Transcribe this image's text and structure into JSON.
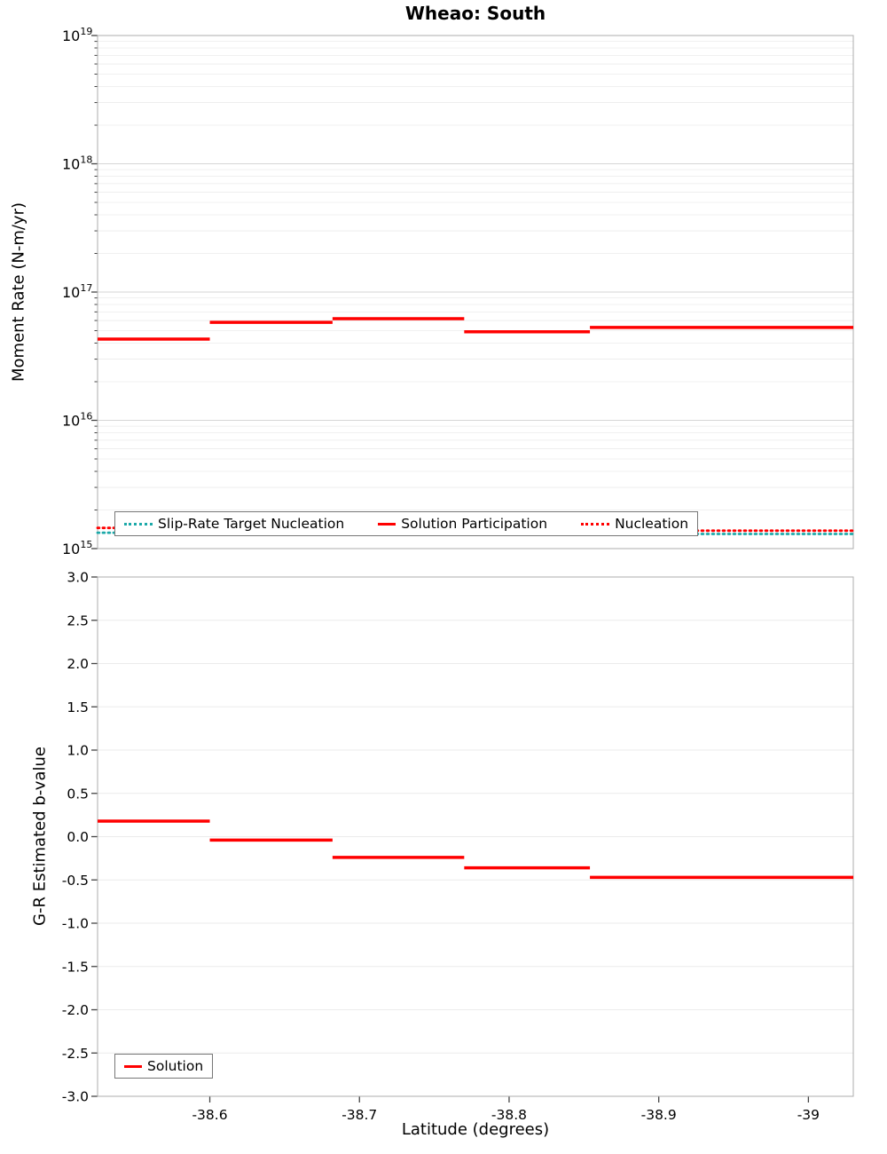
{
  "title": "Wheao: South",
  "colors": {
    "red": "#ff0000",
    "teal": "#1ca9a9",
    "grid_major": "#d6d6d6",
    "grid_minor": "#ebebeb",
    "axis": "#adadad",
    "tick": "#444444",
    "text": "#000000"
  },
  "chart_data": [
    {
      "id": "moment-rate",
      "type": "step-line",
      "title": "Wheao: South",
      "ylabel": "Moment Rate (N-m/yr)",
      "yscale": "log",
      "ylim": [
        1000000000000000.0,
        1e+19
      ],
      "xlim": [
        -38.525,
        -39.03
      ],
      "x_ticks": [
        -38.6,
        -38.7,
        -38.8,
        -38.9,
        -39
      ],
      "show_x_ticks": false,
      "y_ticks": [
        {
          "exp": 15
        },
        {
          "exp": 16
        },
        {
          "exp": 17
        },
        {
          "exp": 18
        },
        {
          "exp": 19
        }
      ],
      "grid": true,
      "legend": {
        "position": "bottom-inside",
        "entries": [
          {
            "label": "Slip-Rate Target Nucleation",
            "color": "teal",
            "style": "dotted"
          },
          {
            "label": "Solution Participation",
            "color": "red",
            "style": "solid"
          },
          {
            "label": "Nucleation",
            "color": "red",
            "style": "dotted"
          }
        ]
      },
      "series": [
        {
          "name": "Solution Participation",
          "color": "red",
          "style": "solid",
          "width": 3.5,
          "steps": [
            {
              "x0": -38.525,
              "x1": -38.6,
              "y": 4.3e+16
            },
            {
              "x0": -38.6,
              "x1": -38.682,
              "y": 5.8e+16
            },
            {
              "x0": -38.682,
              "x1": -38.77,
              "y": 6.2e+16
            },
            {
              "x0": -38.77,
              "x1": -38.854,
              "y": 4.9e+16
            },
            {
              "x0": -38.854,
              "x1": -39.03,
              "y": 5.3e+16
            }
          ]
        },
        {
          "name": "Nucleation",
          "color": "red",
          "style": "dotted",
          "width": 2.8,
          "steps": [
            {
              "x0": -38.525,
              "x1": -38.854,
              "y": 1450000000000000.0
            },
            {
              "x0": -38.854,
              "x1": -39.03,
              "y": 1380000000000000.0
            }
          ]
        },
        {
          "name": "Slip-Rate Target Nucleation",
          "color": "teal",
          "style": "dotted",
          "width": 2.8,
          "steps": [
            {
              "x0": -38.525,
              "x1": -38.854,
              "y": 1330000000000000.0
            },
            {
              "x0": -38.854,
              "x1": -39.03,
              "y": 1300000000000000.0
            }
          ]
        }
      ]
    },
    {
      "id": "b-value",
      "type": "step-line",
      "ylabel": "G-R Estimated b-value",
      "xlabel": "Latitude (degrees)",
      "yscale": "linear",
      "ylim": [
        -3.0,
        3.0
      ],
      "xlim": [
        -38.525,
        -39.03
      ],
      "x_ticks": [
        -38.6,
        -38.7,
        -38.8,
        -38.9,
        -39
      ],
      "x_tick_labels": [
        "-38.6",
        "-38.7",
        "-38.8",
        "-38.9",
        "-39"
      ],
      "show_x_ticks": true,
      "y_ticks": [
        {
          "v": 3.0,
          "label": "3.0"
        },
        {
          "v": 2.5,
          "label": "2.5"
        },
        {
          "v": 2.0,
          "label": "2.0"
        },
        {
          "v": 1.5,
          "label": "1.5"
        },
        {
          "v": 1.0,
          "label": "1.0"
        },
        {
          "v": 0.5,
          "label": "0.5"
        },
        {
          "v": 0.0,
          "label": "0.0"
        },
        {
          "v": -0.5,
          "label": "-0.5"
        },
        {
          "v": -1.0,
          "label": "-1.0"
        },
        {
          "v": -1.5,
          "label": "-1.5"
        },
        {
          "v": -2.0,
          "label": "-2.0"
        },
        {
          "v": -2.5,
          "label": "-2.5"
        },
        {
          "v": -3.0,
          "label": "-3.0"
        }
      ],
      "grid": true,
      "legend": {
        "position": "bottom-left-inside",
        "entries": [
          {
            "label": "Solution",
            "color": "red",
            "style": "solid"
          }
        ]
      },
      "series": [
        {
          "name": "Solution",
          "color": "red",
          "style": "solid",
          "width": 3.5,
          "steps": [
            {
              "x0": -38.525,
              "x1": -38.6,
              "y": 0.18
            },
            {
              "x0": -38.6,
              "x1": -38.682,
              "y": -0.04
            },
            {
              "x0": -38.682,
              "x1": -38.77,
              "y": -0.24
            },
            {
              "x0": -38.77,
              "x1": -38.854,
              "y": -0.36
            },
            {
              "x0": -38.854,
              "x1": -39.03,
              "y": -0.47
            }
          ]
        }
      ]
    }
  ]
}
